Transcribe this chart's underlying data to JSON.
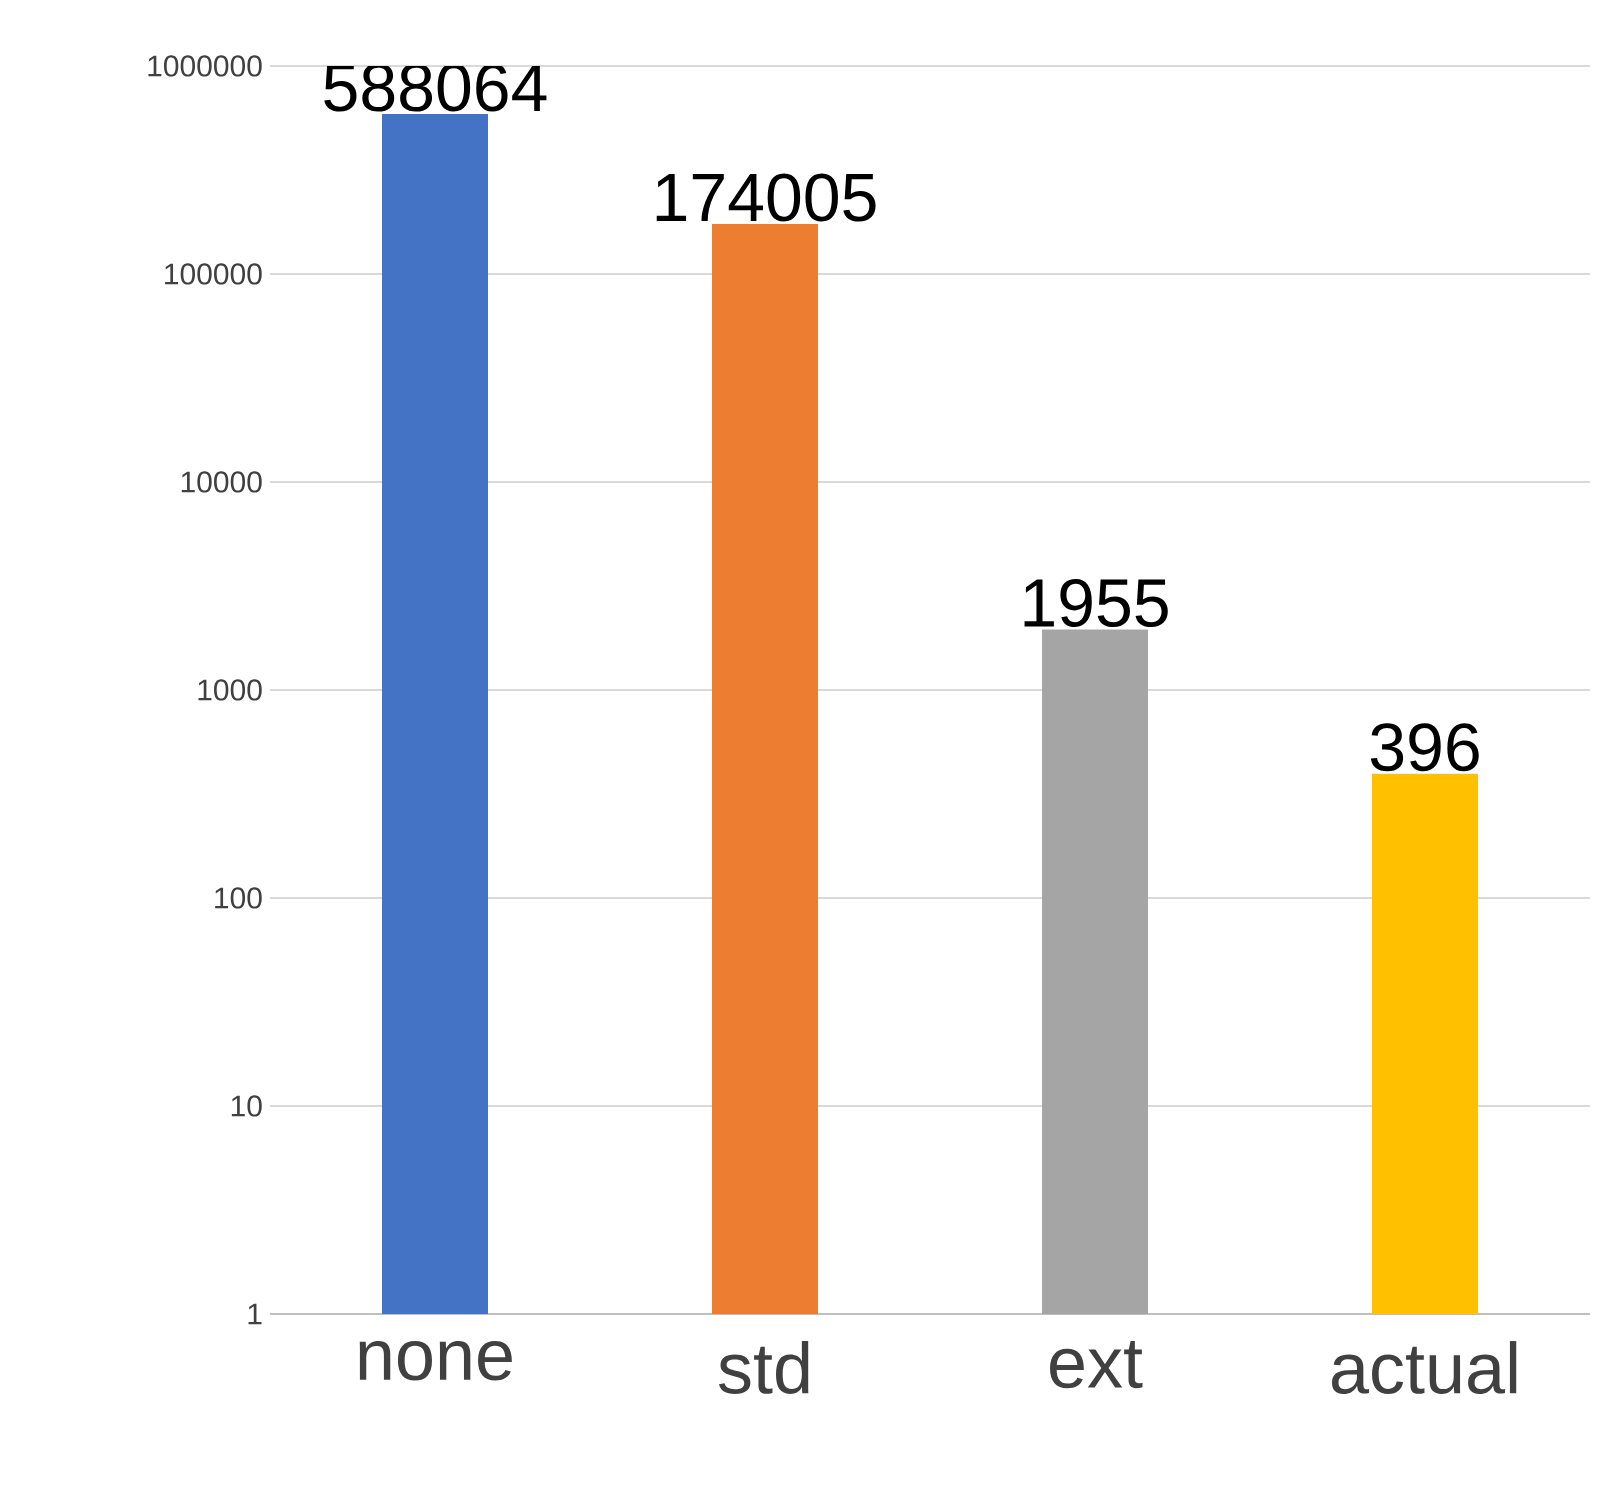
{
  "chart_data": {
    "type": "bar",
    "categories": [
      "none",
      "std",
      "ext",
      "actual"
    ],
    "values": [
      588064,
      174005,
      1955,
      396
    ],
    "colors": [
      "#4472c4",
      "#ed7d31",
      "#a5a5a5",
      "#ffc000"
    ],
    "log": "y",
    "ylim": [
      1,
      1000000
    ],
    "yticks": [
      1,
      10,
      100,
      1000,
      10000,
      100000,
      1000000
    ],
    "grid": "y",
    "data_labels": true
  }
}
